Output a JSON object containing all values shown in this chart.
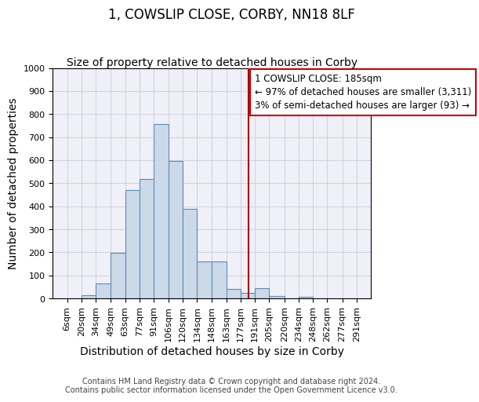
{
  "title": "1, COWSLIP CLOSE, CORBY, NN18 8LF",
  "subtitle": "Size of property relative to detached houses in Corby",
  "xlabel": "Distribution of detached houses by size in Corby",
  "ylabel": "Number of detached properties",
  "bin_edges": [
    6,
    20,
    34,
    49,
    63,
    77,
    91,
    106,
    120,
    134,
    148,
    163,
    177,
    191,
    205,
    220,
    234,
    248,
    262,
    277,
    291
  ],
  "bar_heights": [
    0,
    14,
    65,
    197,
    470,
    518,
    756,
    596,
    390,
    160,
    160,
    40,
    25,
    45,
    11,
    0,
    8,
    0,
    0,
    0
  ],
  "bar_color": "#ccd9e8",
  "bar_edge_color": "#5b8db8",
  "grid_color": "#ccccdd",
  "background_color": "#ffffff",
  "plot_bg_color": "#f0f0f8",
  "red_line_x": 185,
  "red_line_color": "#aa0000",
  "annotation_line1": "1 COWSLIP CLOSE: 185sqm",
  "annotation_line2": "← 97% of detached houses are smaller (3,311)",
  "annotation_line3": "3% of semi-detached houses are larger (93) →",
  "annotation_box_color": "#cc0000",
  "ylim": [
    0,
    1000
  ],
  "yticks": [
    0,
    100,
    200,
    300,
    400,
    500,
    600,
    700,
    800,
    900,
    1000
  ],
  "xtick_labels": [
    "6sqm",
    "20sqm",
    "34sqm",
    "49sqm",
    "63sqm",
    "77sqm",
    "91sqm",
    "106sqm",
    "120sqm",
    "134sqm",
    "148sqm",
    "163sqm",
    "177sqm",
    "191sqm",
    "205sqm",
    "220sqm",
    "234sqm",
    "248sqm",
    "262sqm",
    "277sqm",
    "291sqm"
  ],
  "footer_text": "Contains HM Land Registry data © Crown copyright and database right 2024.\nContains public sector information licensed under the Open Government Licence v3.0.",
  "title_fontsize": 12,
  "subtitle_fontsize": 10,
  "axis_label_fontsize": 10,
  "tick_fontsize": 8,
  "annotation_fontsize": 8.5,
  "footer_fontsize": 7
}
